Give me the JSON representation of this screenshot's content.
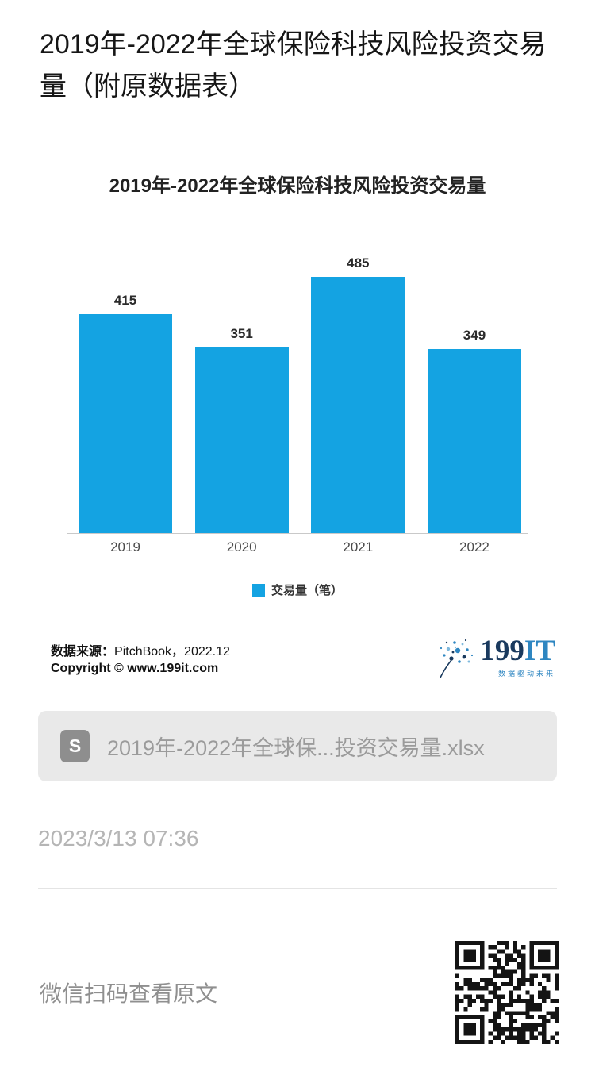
{
  "page": {
    "title": "2019年-2022年全球保险科技风险投资交易量（附原数据表）",
    "timestamp": "2023/3/13 07:36",
    "footer_hint": "微信扫码查看原文"
  },
  "chart_data": {
    "type": "bar",
    "title": "2019年-2022年全球保险科技风险投资交易量",
    "categories": [
      "2019",
      "2020",
      "2021",
      "2022"
    ],
    "values": [
      415,
      351,
      485,
      349
    ],
    "legend": [
      "交易量（笔）"
    ],
    "bar_color": "#14a3e2",
    "ylim": [
      0,
      520
    ],
    "grid": false,
    "legend_position": "bottom"
  },
  "source": {
    "label": "数据来源：",
    "value": "PitchBook，2022.12",
    "copyright_label": "Copyright ©",
    "copyright_value": "www.199it.com"
  },
  "logo": {
    "name_part1": "199",
    "name_part2": "IT",
    "tagline": "数据驱动未来"
  },
  "attachment": {
    "icon_letter": "S",
    "filename": "2019年-2022年全球保...投资交易量.xlsx"
  }
}
